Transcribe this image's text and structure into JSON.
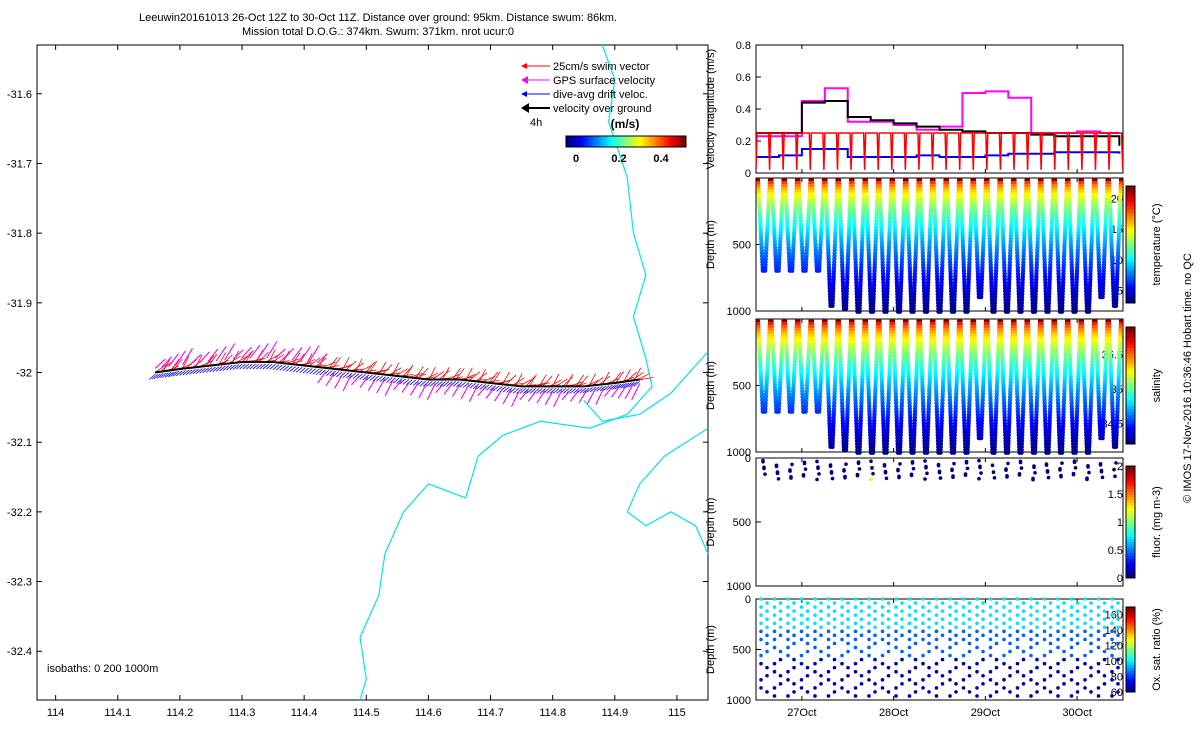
{
  "title": {
    "line1": "Leeuwin20161013 26-Oct 12Z to 30-Oct 11Z. Distance over ground: 95km. Distance swum: 86km.",
    "line2": "Mission total D.O.G.: 374km. Swum: 371km. nrot ucur:0"
  },
  "footer": {
    "credit": "© IMOS 17-Nov-2016 10:36:46 Hobart time. no QC",
    "isobaths": "isobaths: 0   200  1000m",
    "track_time_label": "4h"
  },
  "colors": {
    "swim_vector": "#ff0000",
    "gps_surface": "#ff00ff",
    "dive_avg_drift": "#0000ff",
    "velocity_over_ground": "#000000",
    "coastline": "#00e5ee"
  },
  "legend": {
    "items": [
      {
        "label": "25cm/s swim vector",
        "color": "#ff0000"
      },
      {
        "label": "GPS surface velocity",
        "color": "#ff00ff"
      },
      {
        "label": "dive-avg drift veloc.",
        "color": "#0000ff"
      },
      {
        "label": "velocity over ground",
        "color": "#000000"
      }
    ],
    "colorbar_title": "(m/s)",
    "colorbar_ticks": [
      "0",
      "0.2",
      "0.4"
    ],
    "colorbar_range": [
      0,
      0.5
    ]
  },
  "chart_data": [
    {
      "type": "scatter",
      "name": "map",
      "xlabel": "",
      "ylabel": "",
      "xlim": [
        113.97,
        115.05
      ],
      "ylim": [
        -32.47,
        -31.53
      ],
      "xticks": [
        "114",
        "114.1",
        "114.2",
        "114.3",
        "114.4",
        "114.5",
        "114.6",
        "114.7",
        "114.8",
        "114.9",
        "115"
      ],
      "yticks": [
        "-31.6",
        "-31.7",
        "-31.8",
        "-31.9",
        "-32",
        "-32.1",
        "-32.2",
        "-32.3",
        "-32.4"
      ],
      "track": {
        "lon": [
          114.16,
          114.2,
          114.25,
          114.3,
          114.35,
          114.4,
          114.45,
          114.5,
          114.55,
          114.6,
          114.65,
          114.7,
          114.75,
          114.8,
          114.85,
          114.9,
          114.94
        ],
        "lat": [
          -32.0,
          -31.995,
          -31.99,
          -31.985,
          -31.985,
          -31.99,
          -31.995,
          -32.0,
          -32.005,
          -32.01,
          -32.01,
          -32.015,
          -32.02,
          -32.02,
          -32.02,
          -32.015,
          -32.01
        ]
      },
      "coastline_labels": [
        "0m",
        "200m",
        "1000m"
      ]
    },
    {
      "type": "line",
      "name": "velocity",
      "ylabel": "Velocity magnitude (m/s)",
      "ylim": [
        0,
        0.8
      ],
      "yticks": [
        "0",
        "0.2",
        "0.4",
        "0.6",
        "0.8"
      ],
      "x_days": [
        26.5,
        26.75,
        27.0,
        27.25,
        27.5,
        27.75,
        28.0,
        28.25,
        28.5,
        28.75,
        29.0,
        29.25,
        29.5,
        29.75,
        30.0,
        30.25,
        30.46
      ],
      "series": [
        {
          "name": "GPS surface velocity",
          "color": "#ff00ff",
          "values": [
            0.23,
            0.23,
            0.45,
            0.53,
            0.32,
            0.32,
            0.3,
            0.27,
            0.29,
            0.5,
            0.51,
            0.47,
            0.25,
            0.25,
            0.26,
            0.25,
            0.25
          ]
        },
        {
          "name": "velocity over ground",
          "color": "#000000",
          "values": [
            0.25,
            0.25,
            0.44,
            0.45,
            0.35,
            0.33,
            0.31,
            0.29,
            0.27,
            0.26,
            0.25,
            0.25,
            0.24,
            0.23,
            0.23,
            0.23,
            0.17
          ]
        },
        {
          "name": "dive-avg drift veloc.",
          "color": "#0000ff",
          "values": [
            0.1,
            0.11,
            0.15,
            0.15,
            0.1,
            0.1,
            0.1,
            0.11,
            0.1,
            0.1,
            0.11,
            0.12,
            0.12,
            0.13,
            0.13,
            0.13,
            0.12
          ]
        },
        {
          "name": "25cm/s swim vector",
          "color": "#ff0000",
          "values": [
            0.25,
            0.25,
            0.25,
            0.25,
            0.25,
            0.25,
            0.25,
            0.25,
            0.25,
            0.25,
            0.25,
            0.25,
            0.25,
            0.25,
            0.25,
            0.25,
            0.25
          ]
        }
      ]
    },
    {
      "type": "scatter",
      "name": "temperature",
      "ylabel": "Depth (m)",
      "ylim": [
        1000,
        0
      ],
      "yticks": [
        "500",
        "1000"
      ],
      "colorbar_label": "temperature (°C)",
      "colorbar_range": [
        3,
        22
      ],
      "colorbar_ticks": [
        "5",
        "10",
        "15",
        "20"
      ],
      "dives": 27,
      "max_depths": [
        700,
        700,
        700,
        700,
        700,
        950,
        980,
        990,
        990,
        990,
        990,
        990,
        990,
        990,
        990,
        990,
        900,
        990,
        990,
        990,
        990,
        990,
        990,
        990,
        990,
        900,
        950
      ]
    },
    {
      "type": "scatter",
      "name": "salinity",
      "ylabel": "Depth (m)",
      "ylim": [
        1000,
        0
      ],
      "yticks": [
        "500",
        "1000"
      ],
      "colorbar_label": "salinity",
      "colorbar_range": [
        34.2,
        35.9
      ],
      "colorbar_ticks": [
        "34.5",
        "35",
        "35.5"
      ],
      "dives": 27,
      "max_depths": [
        700,
        700,
        700,
        700,
        700,
        950,
        980,
        990,
        990,
        990,
        990,
        990,
        990,
        990,
        990,
        990,
        900,
        990,
        990,
        990,
        990,
        990,
        990,
        990,
        990,
        900,
        950
      ]
    },
    {
      "type": "scatter",
      "name": "fluorescence",
      "ylabel": "Depth (m)",
      "ylim": [
        1000,
        0
      ],
      "yticks": [
        "0",
        "500",
        "1000"
      ],
      "colorbar_label": "fluor. (mg m-3)",
      "colorbar_range": [
        0,
        2
      ],
      "colorbar_ticks": [
        "0",
        "0.5",
        "1",
        "1.5",
        "2"
      ]
    },
    {
      "type": "scatter",
      "name": "oxygen",
      "ylabel": "Depth (m)",
      "ylim": [
        1000,
        0
      ],
      "yticks": [
        "0",
        "500",
        "1000"
      ],
      "colorbar_label": "Ox. sat. ratio (%)",
      "colorbar_range": [
        60,
        170
      ],
      "colorbar_ticks": [
        "60",
        "80",
        "100",
        "120",
        "140",
        "160"
      ],
      "xlim": [
        26.5,
        30.5
      ],
      "xticks": [
        "27Oct",
        "28Oct",
        "29Oct",
        "30Oct"
      ]
    }
  ]
}
